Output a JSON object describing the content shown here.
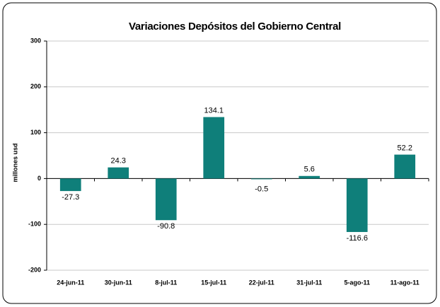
{
  "chart_data": {
    "type": "bar",
    "title": "Variaciones Depósitos del Gobierno Central",
    "y_label": "millones usd",
    "categories": [
      "24-jun-11",
      "30-jun-11",
      "8-jul-11",
      "15-jul-11",
      "22-jul-11",
      "31-jul-11",
      "5-ago-11",
      "11-ago-11"
    ],
    "values": [
      -27.3,
      24.3,
      -90.8,
      134.1,
      -0.5,
      5.6,
      -116.6,
      52.2
    ],
    "color": "#0f7f7a",
    "ylim": [
      -200,
      300
    ],
    "yticks": [
      -200,
      -100,
      0,
      100,
      200,
      300
    ],
    "grid": true
  }
}
